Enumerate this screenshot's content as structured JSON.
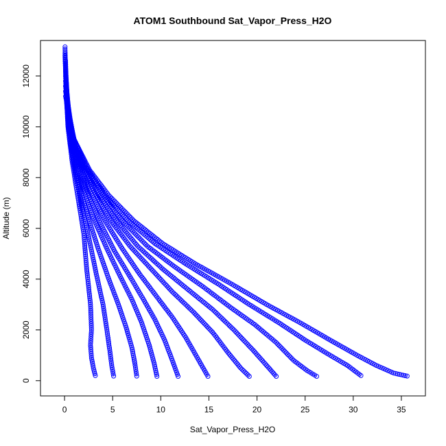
{
  "chart_data": {
    "type": "scatter",
    "title": "ATOM1 Southbound Sat_Vapor_Press_H2O",
    "xlabel": "Sat_Vapor_Press_H2O",
    "ylabel": "Altitude (m)",
    "xlim": [
      -2.5,
      37.5
    ],
    "ylim": [
      -600,
      13400
    ],
    "xticks": [
      0,
      5,
      10,
      15,
      20,
      25,
      30,
      35
    ],
    "yticks": [
      0,
      2000,
      4000,
      6000,
      8000,
      10000,
      12000
    ],
    "xtick_labels": [
      "0",
      "5",
      "10",
      "15",
      "20",
      "25",
      "30",
      "35"
    ],
    "ytick_labels": [
      "0",
      "2000",
      "4000",
      "6000",
      "8000",
      "10000",
      "12000"
    ],
    "marker": "open-circle",
    "connect_points": true,
    "colors": {
      "series": "#0000ff",
      "axis": "#000000"
    },
    "grid": false,
    "series": [
      {
        "points": [
          [
            0.05,
            13150
          ],
          [
            0.15,
            11500
          ],
          [
            0.35,
            10000
          ],
          [
            0.8,
            8600
          ],
          [
            1.4,
            7200
          ],
          [
            2.0,
            5800
          ],
          [
            2.3,
            4400
          ],
          [
            2.7,
            3000
          ],
          [
            2.8,
            2000
          ],
          [
            2.7,
            1400
          ],
          [
            2.8,
            900
          ],
          [
            3.0,
            500
          ],
          [
            3.2,
            200
          ]
        ]
      },
      {
        "points": [
          [
            0.05,
            12900
          ],
          [
            0.2,
            11000
          ],
          [
            0.5,
            9600
          ],
          [
            1.1,
            8200
          ],
          [
            1.8,
            6900
          ],
          [
            2.6,
            5500
          ],
          [
            3.3,
            4200
          ],
          [
            4.0,
            3000
          ],
          [
            4.4,
            2000
          ],
          [
            4.7,
            1200
          ],
          [
            4.9,
            600
          ],
          [
            5.1,
            180
          ]
        ]
      },
      {
        "points": [
          [
            0.05,
            12800
          ],
          [
            0.25,
            10800
          ],
          [
            0.7,
            9300
          ],
          [
            1.4,
            7900
          ],
          [
            2.4,
            6500
          ],
          [
            3.5,
            5200
          ],
          [
            4.6,
            4000
          ],
          [
            5.6,
            3000
          ],
          [
            6.4,
            2100
          ],
          [
            7.0,
            1300
          ],
          [
            7.3,
            700
          ],
          [
            7.5,
            180
          ]
        ]
      },
      {
        "points": [
          [
            0.1,
            12600
          ],
          [
            0.3,
            10500
          ],
          [
            0.9,
            9100
          ],
          [
            1.8,
            7700
          ],
          [
            3.0,
            6400
          ],
          [
            4.4,
            5200
          ],
          [
            5.8,
            4100
          ],
          [
            7.0,
            3200
          ],
          [
            8.0,
            2300
          ],
          [
            8.8,
            1400
          ],
          [
            9.3,
            700
          ],
          [
            9.6,
            170
          ]
        ]
      },
      {
        "points": [
          [
            0.1,
            12400
          ],
          [
            0.4,
            10300
          ],
          [
            1.1,
            8900
          ],
          [
            2.2,
            7600
          ],
          [
            3.6,
            6300
          ],
          [
            5.2,
            5100
          ],
          [
            6.8,
            4100
          ],
          [
            8.2,
            3200
          ],
          [
            9.4,
            2400
          ],
          [
            10.4,
            1600
          ],
          [
            11.2,
            800
          ],
          [
            11.8,
            170
          ]
        ]
      },
      {
        "points": [
          [
            0.1,
            12200
          ],
          [
            0.5,
            10100
          ],
          [
            1.3,
            8800
          ],
          [
            2.6,
            7500
          ],
          [
            4.2,
            6300
          ],
          [
            6.0,
            5200
          ],
          [
            7.8,
            4200
          ],
          [
            9.6,
            3300
          ],
          [
            11.2,
            2500
          ],
          [
            12.6,
            1700
          ],
          [
            13.8,
            900
          ],
          [
            14.9,
            170
          ]
        ]
      },
      {
        "points": [
          [
            0.1,
            12000
          ],
          [
            0.6,
            9900
          ],
          [
            1.5,
            8700
          ],
          [
            3.0,
            7500
          ],
          [
            4.8,
            6300
          ],
          [
            6.8,
            5300
          ],
          [
            9.0,
            4400
          ],
          [
            11.2,
            3500
          ],
          [
            13.4,
            2700
          ],
          [
            15.4,
            1900
          ],
          [
            17.0,
            1100
          ],
          [
            18.3,
            500
          ],
          [
            19.2,
            170
          ]
        ]
      },
      {
        "points": [
          [
            0.1,
            11800
          ],
          [
            0.7,
            9800
          ],
          [
            1.7,
            8600
          ],
          [
            3.4,
            7400
          ],
          [
            5.4,
            6300
          ],
          [
            7.6,
            5300
          ],
          [
            10.2,
            4400
          ],
          [
            12.8,
            3600
          ],
          [
            15.4,
            2800
          ],
          [
            17.6,
            2000
          ],
          [
            19.6,
            1200
          ],
          [
            21.0,
            600
          ],
          [
            22.0,
            170
          ]
        ]
      },
      {
        "points": [
          [
            0.1,
            11600
          ],
          [
            0.8,
            9700
          ],
          [
            2.0,
            8500
          ],
          [
            3.8,
            7400
          ],
          [
            6.0,
            6300
          ],
          [
            8.6,
            5300
          ],
          [
            11.4,
            4500
          ],
          [
            14.4,
            3700
          ],
          [
            17.2,
            2900
          ],
          [
            19.8,
            2200
          ],
          [
            22.0,
            1500
          ],
          [
            23.8,
            800
          ],
          [
            25.2,
            400
          ],
          [
            26.2,
            170
          ]
        ]
      },
      {
        "points": [
          [
            0.1,
            11400
          ],
          [
            0.9,
            9600
          ],
          [
            2.3,
            8400
          ],
          [
            4.2,
            7300
          ],
          [
            6.6,
            6300
          ],
          [
            9.4,
            5400
          ],
          [
            12.6,
            4600
          ],
          [
            16.0,
            3800
          ],
          [
            19.2,
            3000
          ],
          [
            22.2,
            2300
          ],
          [
            25.0,
            1600
          ],
          [
            27.6,
            1000
          ],
          [
            29.4,
            600
          ],
          [
            30.8,
            200
          ]
        ]
      },
      {
        "points": [
          [
            0.1,
            11200
          ],
          [
            1.0,
            9500
          ],
          [
            2.6,
            8300
          ],
          [
            4.6,
            7300
          ],
          [
            7.2,
            6300
          ],
          [
            10.2,
            5400
          ],
          [
            13.6,
            4600
          ],
          [
            17.4,
            3800
          ],
          [
            21.0,
            3000
          ],
          [
            24.4,
            2300
          ],
          [
            27.6,
            1600
          ],
          [
            30.4,
            1000
          ],
          [
            32.4,
            600
          ],
          [
            34.2,
            300
          ],
          [
            35.6,
            180
          ]
        ]
      }
    ]
  }
}
